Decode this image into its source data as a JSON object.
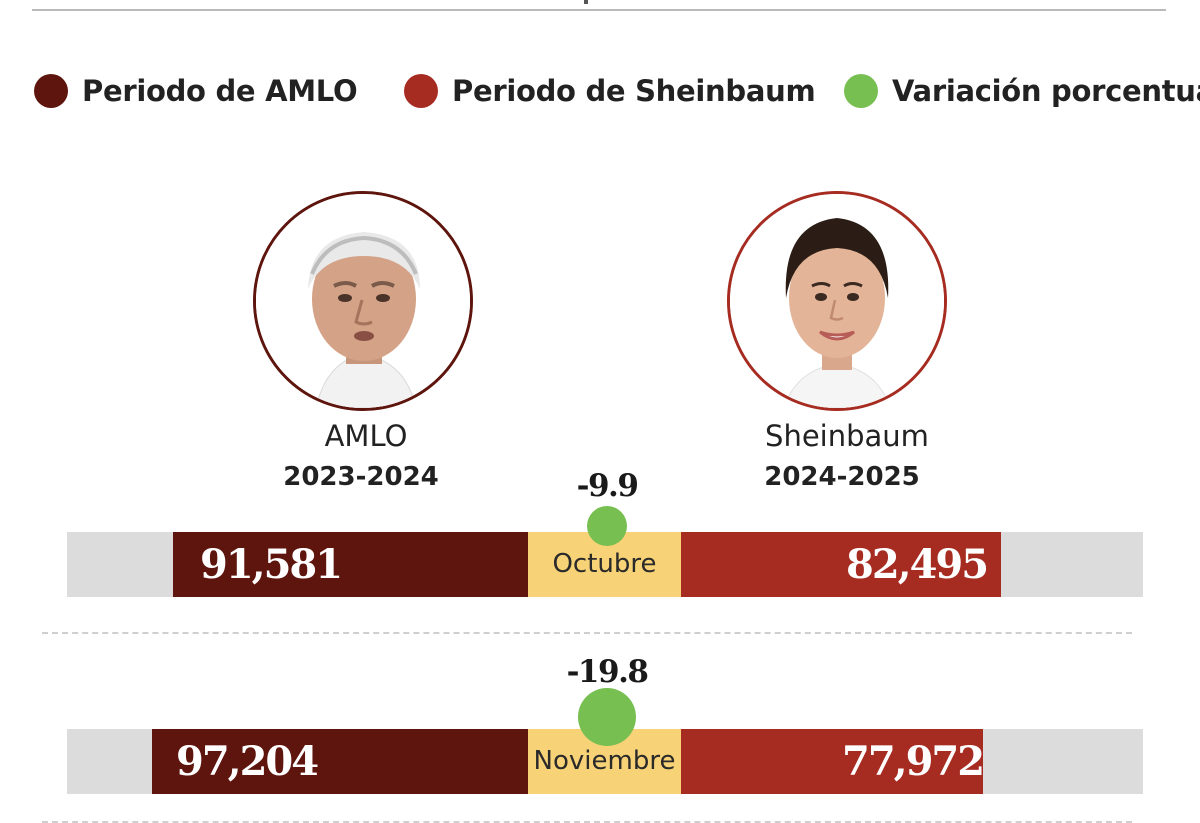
{
  "colors": {
    "amlo": "#5e150d",
    "sheinbaum": "#a62b21",
    "variation": "#78bf52",
    "month_bg": "#f7d276",
    "track": "#dcdcdc"
  },
  "legend": [
    {
      "label": "Periodo de AMLO",
      "color": "#5e150d"
    },
    {
      "label": "Periodo de Sheinbaum",
      "color": "#a62b21"
    },
    {
      "label": "Variación porcentual",
      "color": "#78bf52"
    }
  ],
  "people": {
    "left": {
      "name": "AMLO",
      "period": "2023-2024"
    },
    "right": {
      "name": "Sheinbaum",
      "period": "2024-2025"
    }
  },
  "chart_data": {
    "type": "bar",
    "categories": [
      "Octubre",
      "Noviembre"
    ],
    "series": [
      {
        "name": "Periodo de AMLO",
        "values": [
          91581,
          97204
        ],
        "labels": [
          "91,581",
          "97,204"
        ]
      },
      {
        "name": "Periodo de Sheinbaum",
        "values": [
          82495,
          77972
        ],
        "labels": [
          "82,495",
          "77,972"
        ]
      },
      {
        "name": "Variación porcentual",
        "values": [
          -9.9,
          -19.8
        ],
        "labels": [
          "-9.9",
          "-19.8"
        ]
      }
    ],
    "legend": [
      "Periodo de AMLO",
      "Periodo de Sheinbaum",
      "Variación porcentual"
    ]
  }
}
